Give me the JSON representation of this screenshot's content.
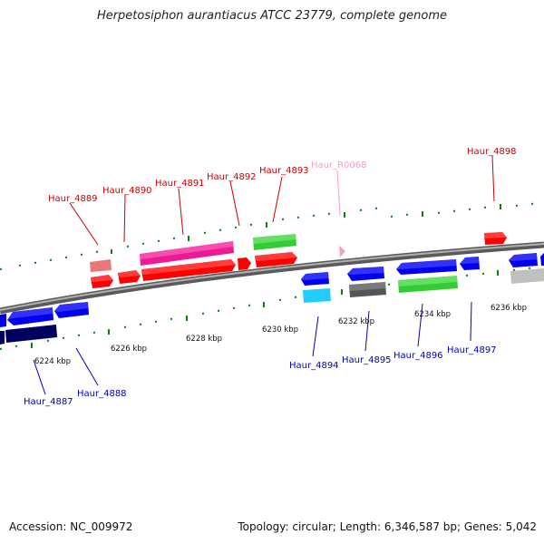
{
  "title": "Herpetosiphon aurantiacus ATCC 23779, complete genome",
  "footer": {
    "accession": "Accession: NC_009972",
    "summary": "Topology: circular; Length: 6,346,587 bp; Genes: 5,042"
  },
  "axis_labels": [
    {
      "id": "6224",
      "text": "6224 kbp"
    },
    {
      "id": "6226",
      "text": "6226 kbp"
    },
    {
      "id": "6228",
      "text": "6228 kbp"
    },
    {
      "id": "6230",
      "text": "6230 kbp"
    },
    {
      "id": "6232",
      "text": "6232 kbp"
    },
    {
      "id": "6234",
      "text": "6234 kbp"
    },
    {
      "id": "6236",
      "text": "6236 kbp"
    }
  ],
  "gene_labels_top": [
    {
      "id": "Haur_4889",
      "text": "Haur_4889",
      "color": "#cc0000"
    },
    {
      "id": "Haur_4890",
      "text": "Haur_4890",
      "color": "#cc0000"
    },
    {
      "id": "Haur_4891",
      "text": "Haur_4891",
      "color": "#cc0000"
    },
    {
      "id": "Haur_4892",
      "text": "Haur_4892",
      "color": "#cc0000"
    },
    {
      "id": "Haur_4893",
      "text": "Haur_4893",
      "color": "#cc0000"
    },
    {
      "id": "Haur_R0068",
      "text": "Haur_R0068",
      "color": "#f2a0c8"
    },
    {
      "id": "Haur_4898",
      "text": "Haur_4898",
      "color": "#cc0000"
    }
  ],
  "gene_labels_bottom": [
    {
      "id": "Haur_4887",
      "text": "Haur_4887",
      "color": "#0000bb"
    },
    {
      "id": "Haur_4888",
      "text": "Haur_4888",
      "color": "#0000bb"
    },
    {
      "id": "Haur_4894",
      "text": "Haur_4894",
      "color": "#0000bb"
    },
    {
      "id": "Haur_4895",
      "text": "Haur_4895",
      "color": "#0000bb"
    },
    {
      "id": "Haur_4896",
      "text": "Haur_4896",
      "color": "#0000bb"
    },
    {
      "id": "Haur_4897",
      "text": "Haur_4897",
      "color": "#0000bb"
    }
  ],
  "colors": {
    "forward_gene": "#ff0000",
    "reverse_gene": "#0000ff",
    "gc_skew_green": "#33cc33",
    "backbone": "#808080",
    "tick_green": "#008800"
  }
}
